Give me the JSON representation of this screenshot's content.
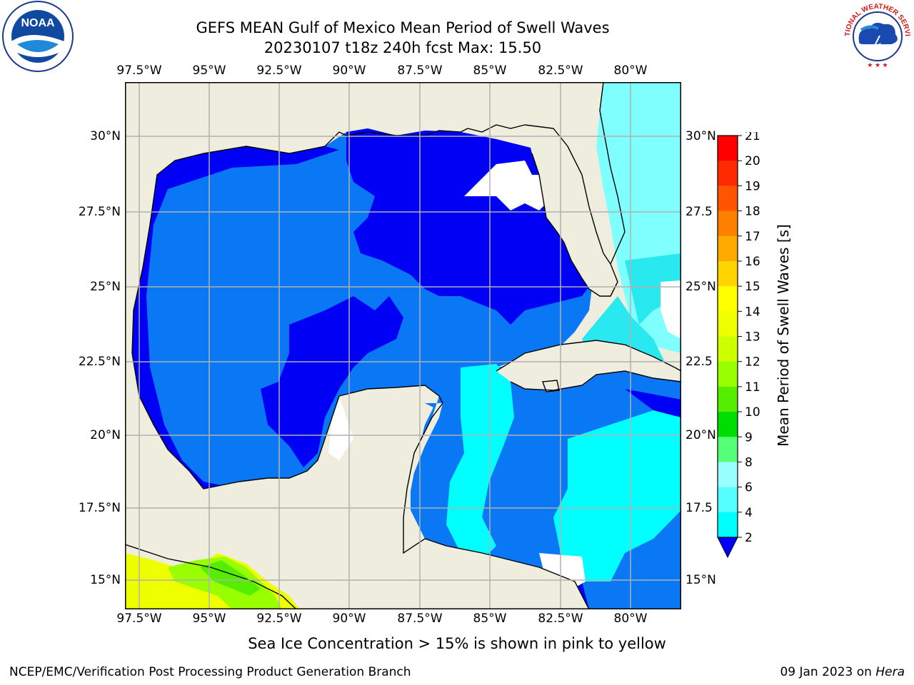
{
  "title": {
    "line1": "GEFS MEAN Gulf of Mexico Mean Period of Swell Waves",
    "line2": "20230107 t18z 240h fcst   Max: 15.50"
  },
  "map": {
    "lon_labels": [
      "97.5°W",
      "95°W",
      "92.5°W",
      "90°W",
      "87.5°W",
      "85°W",
      "82.5°W",
      "80°W"
    ],
    "lat_labels_left": [
      "30°N",
      "27.5°N",
      "25°N",
      "22.5°N",
      "20°N",
      "17.5°N",
      "15°N"
    ],
    "lat_labels_right": [
      "30°N",
      "27.5",
      "25°N",
      "22.5",
      "20°N",
      "17.5",
      "15°N"
    ],
    "colors": {
      "land": "#efedde",
      "deep_blue": "#0000f5",
      "mid_blue": "#0a78f5",
      "cyan": "#00ffff",
      "light_cyan": "#80ffff",
      "pale_cyan": "#2ae8f0",
      "grid": "#b0b0b0"
    }
  },
  "colorbar": {
    "title": "Mean Period of Swell Waves [s]",
    "tick_labels": [
      "21",
      "20",
      "19",
      "18",
      "17",
      "16",
      "15",
      "14",
      "13",
      "12",
      "11",
      "10",
      "9",
      "8",
      "6",
      "4",
      "2"
    ],
    "colors_top_to_bottom": [
      "#ff0000",
      "#ff2a00",
      "#ff5500",
      "#ff7f00",
      "#ffaa00",
      "#ffd400",
      "#ffff00",
      "#eeff00",
      "#ccff00",
      "#99ff00",
      "#55ee00",
      "#00dd00",
      "#55ff77",
      "#99ffff",
      "#55ffff",
      "#00ffff",
      "#0080ff"
    ],
    "extend_color": "#0000ff"
  },
  "footnote": "Sea Ice Concentration > 15% is shown in pink to yellow",
  "credit": "NCEP/EMC/Verification Post Processing Product Generation Branch",
  "date_prefix": "09 Jan 2023 on ",
  "date_host": "Hera",
  "logos": {
    "noaa_text": "NOAA",
    "nws_text": "NATIONAL WEATHER SERVICE"
  }
}
